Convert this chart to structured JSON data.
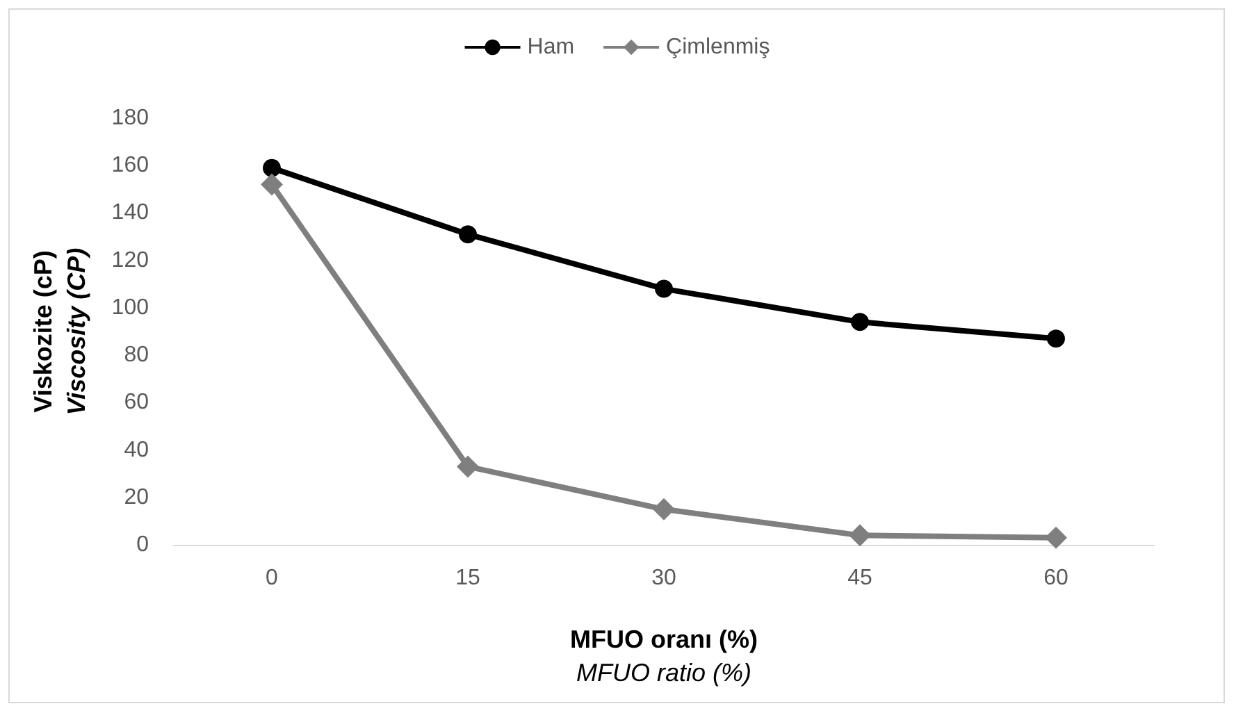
{
  "chart_data": {
    "type": "line",
    "xlabel": "MFUO oranı (%)\nMFUO ratio (%)",
    "ylabel": "Viskozite (cP)\nViscosity (CP)",
    "categories": [
      "0",
      "15",
      "30",
      "45",
      "60"
    ],
    "series": [
      {
        "name": "Ham",
        "color": "#000000",
        "marker": "circle",
        "values": [
          159,
          131,
          108,
          94,
          87
        ]
      },
      {
        "name": "Çimlenmiş",
        "color": "#7f7f7f",
        "marker": "diamond",
        "values": [
          152,
          33,
          15,
          4,
          3
        ]
      }
    ],
    "ylim": [
      0,
      180
    ],
    "yticks": [
      0,
      20,
      40,
      60,
      80,
      100,
      120,
      140,
      160,
      180
    ],
    "grid": false,
    "legend": "top",
    "line_style": "solid"
  }
}
